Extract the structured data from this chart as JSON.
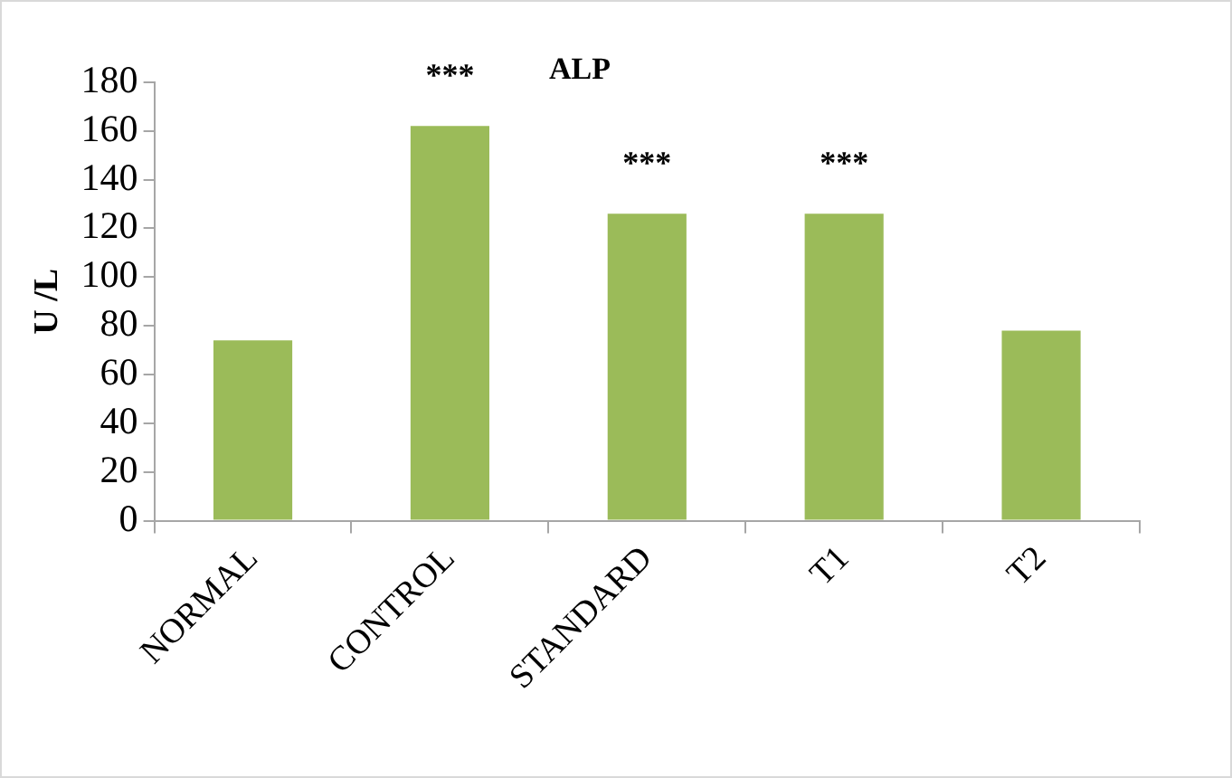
{
  "chart_data": {
    "type": "bar",
    "title": "ALP",
    "ylabel": "U /L",
    "categories": [
      "NORMAL",
      "CONTROL",
      "STANDARD",
      "T1",
      "T2"
    ],
    "values": [
      74,
      162,
      126,
      126,
      78
    ],
    "color": "#9bbb59",
    "ylim": [
      0,
      180
    ],
    "yticks": [
      0,
      20,
      40,
      60,
      80,
      100,
      120,
      140,
      160,
      180
    ],
    "grid": false,
    "legend": false,
    "annotations": [
      {
        "text": "***",
        "x": "CONTROL",
        "y": 162
      },
      {
        "text": "***",
        "x": "STANDARD",
        "y": 126
      },
      {
        "text": "***",
        "x": "T1",
        "y": 126
      }
    ]
  }
}
